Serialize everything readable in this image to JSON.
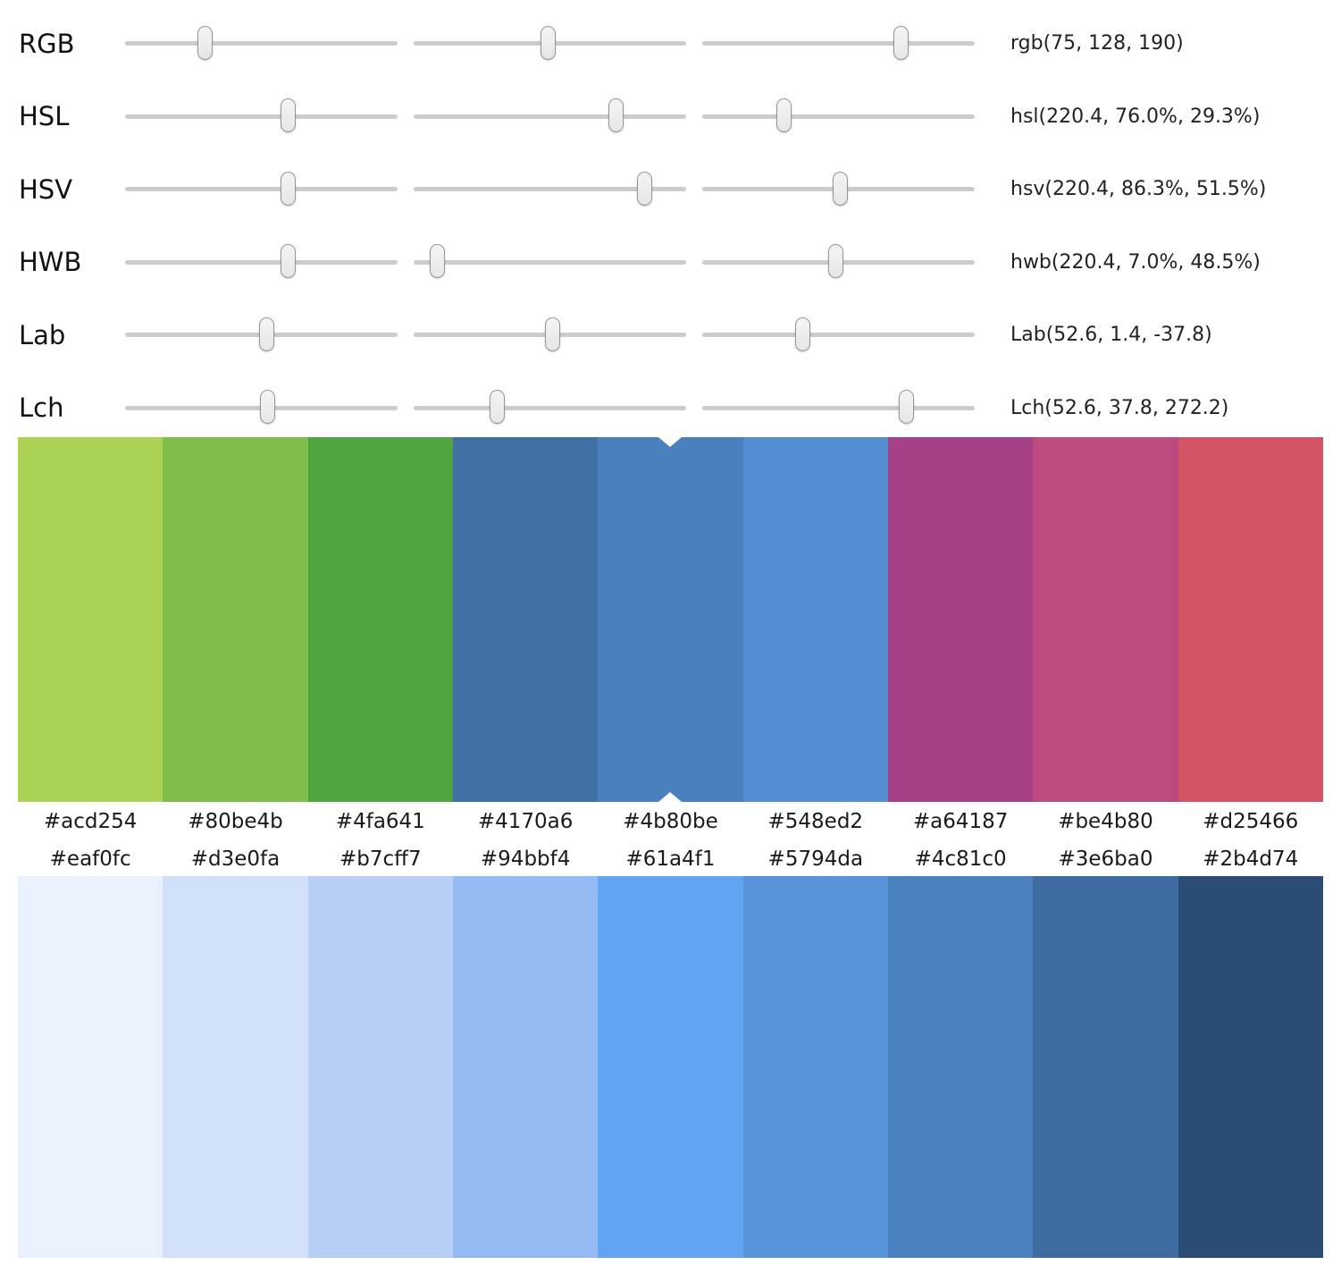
{
  "sliders": [
    {
      "id": "rgb",
      "label": "RGB",
      "value": "rgb(75, 128, 190)",
      "t1": "29.5%",
      "t2": "49.5%",
      "t3": "73.1%"
    },
    {
      "id": "hsl",
      "label": "HSL",
      "value": "hsl(220.4, 76.0%, 29.3%)",
      "t1": "60.0%",
      "t2": "74.4%",
      "t3": "30.2%"
    },
    {
      "id": "hsv",
      "label": "HSV",
      "value": "hsv(220.4, 86.3%, 51.5%)",
      "t1": "60.0%",
      "t2": "84.9%",
      "t3": "50.8%"
    },
    {
      "id": "hwb",
      "label": "HWB",
      "value": "hwb(220.4, 7.0%, 48.5%)",
      "t1": "60.0%",
      "t2": "8.9%",
      "t3": "49.2%"
    },
    {
      "id": "lab",
      "label": "Lab",
      "value": "Lab(52.6, 1.4, -37.8)",
      "t1": "52.1%",
      "t2": "51.1%",
      "t3": "37.0%"
    },
    {
      "id": "lch",
      "label": "Lch",
      "value": "Lch(52.6, 37.8, 272.2)",
      "t1": "52.5%",
      "t2": "30.8%",
      "t3": "75.1%"
    }
  ],
  "hue_palette": {
    "selected_hex": "#4b80be",
    "selected_index": 4,
    "swatches": [
      "#acd254",
      "#80be4b",
      "#4fa641",
      "#4170a6",
      "#4b80be",
      "#548ed2",
      "#a64187",
      "#be4b80",
      "#d25466"
    ]
  },
  "shade_palette": {
    "swatches": [
      "#eaf0fc",
      "#d3e0fa",
      "#b7cff7",
      "#94bbf4",
      "#61a4f1",
      "#5794da",
      "#4c81c0",
      "#3e6ba0",
      "#2b4d74"
    ]
  }
}
